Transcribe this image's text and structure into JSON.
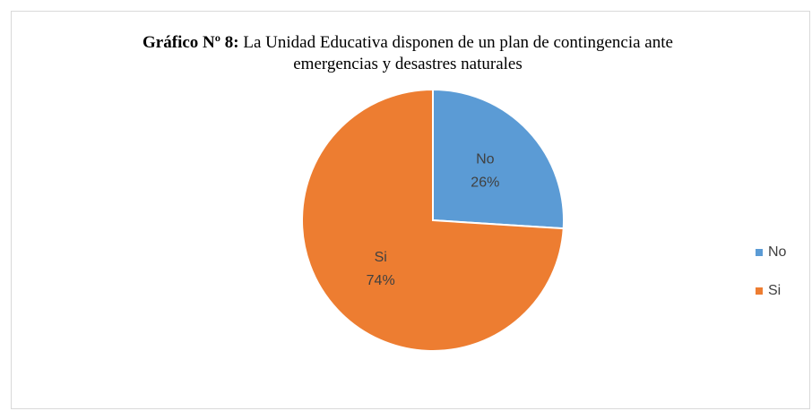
{
  "chart_data": {
    "type": "pie",
    "title_prefix": "Gráfico Nº 8:",
    "title": "La Unidad Educativa disponen de un plan de contingencia ante emergencias y desastres naturales",
    "categories": [
      "No",
      "Si"
    ],
    "values": [
      26,
      74
    ],
    "value_labels": [
      "26%",
      "74%"
    ],
    "colors": [
      "#5b9bd5",
      "#ed7d31"
    ],
    "legend": "right"
  }
}
